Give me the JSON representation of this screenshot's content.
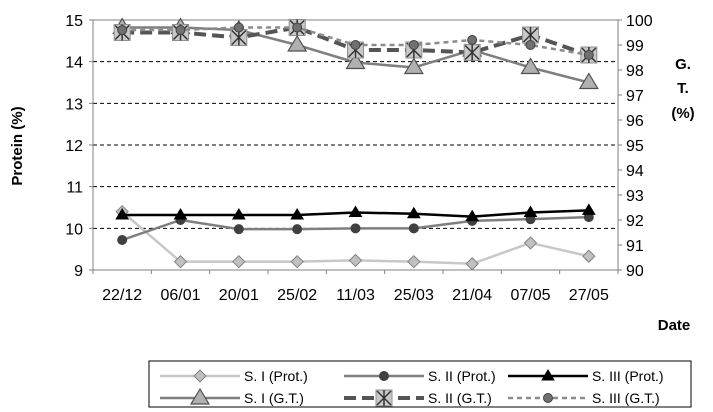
{
  "chart_data": {
    "type": "line",
    "categories": [
      "22/12",
      "06/01",
      "20/01",
      "25/02",
      "11/03",
      "25/03",
      "21/04",
      "07/05",
      "27/05"
    ],
    "ylabel": "Protein  (%)",
    "y2label": [
      "G.",
      "T.",
      "(%)"
    ],
    "xlabel": "Date",
    "ylim": [
      9,
      15
    ],
    "y2lim": [
      90,
      100
    ],
    "yticks": [
      9,
      10,
      11,
      12,
      13,
      14,
      15
    ],
    "y2ticks": [
      90,
      91,
      92,
      93,
      94,
      95,
      96,
      97,
      98,
      99,
      100
    ],
    "grid": "dashed horizontal on left-axis ticks",
    "legend_position": "bottom",
    "series": [
      {
        "name": "S. I (Prot.)",
        "axis": "left",
        "values": [
          10.4,
          9.2,
          9.2,
          9.2,
          9.23,
          9.2,
          9.15,
          9.65,
          9.33
        ],
        "color": "#c8c8c8",
        "marker": "diamond",
        "dash": "solid"
      },
      {
        "name": "S. II (Prot.)",
        "axis": "left",
        "values": [
          9.72,
          10.2,
          9.98,
          9.98,
          10.0,
          10.0,
          10.18,
          10.22,
          10.27
        ],
        "color": "#7f7f7f",
        "marker": "circle",
        "dash": "solid"
      },
      {
        "name": "S. III (Prot.)",
        "axis": "left",
        "values": [
          10.32,
          10.32,
          10.32,
          10.32,
          10.38,
          10.35,
          10.28,
          10.38,
          10.43
        ],
        "color": "#000000",
        "marker": "triangle",
        "dash": "solid"
      },
      {
        "name": "S. I (G.T.)",
        "axis": "right",
        "values": [
          99.7,
          99.7,
          99.6,
          99.0,
          98.3,
          98.1,
          98.8,
          98.1,
          97.5
        ],
        "color": "#7f7f7f",
        "marker": "triangle-big",
        "dash": "solid"
      },
      {
        "name": "S. II (G.T.)",
        "axis": "right",
        "values": [
          99.5,
          99.5,
          99.3,
          99.7,
          98.8,
          98.8,
          98.7,
          99.4,
          98.6
        ],
        "color": "#555555",
        "marker": "star",
        "dash": "dash"
      },
      {
        "name": "S. III (G.T.)",
        "axis": "right",
        "values": [
          99.6,
          99.6,
          99.7,
          99.7,
          99.0,
          99.0,
          99.2,
          99.0,
          98.6
        ],
        "color": "#8c8c8c",
        "marker": "circle",
        "dash": "dot"
      }
    ]
  }
}
